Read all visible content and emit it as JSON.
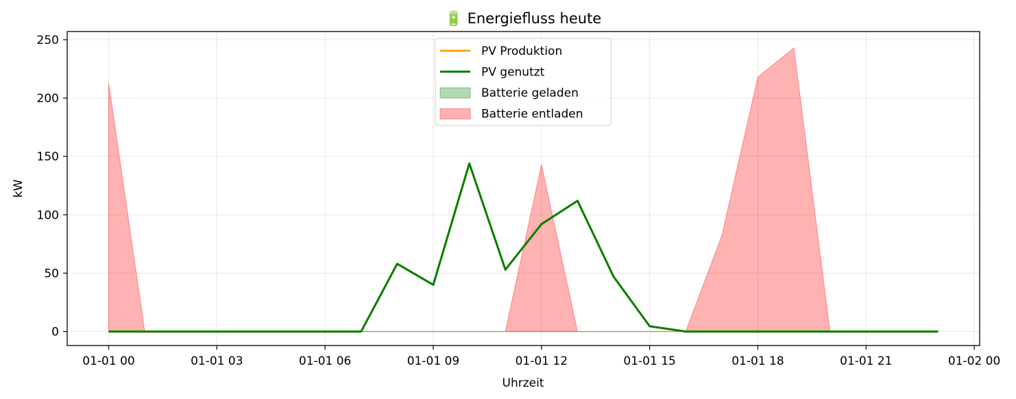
{
  "chart_data": {
    "type": "line",
    "title": "🔋 Energiefluss heute",
    "xlabel": "Uhrzeit",
    "ylabel": "kW",
    "x": [
      0,
      1,
      2,
      3,
      4,
      5,
      6,
      7,
      8,
      9,
      10,
      11,
      12,
      13,
      14,
      15,
      16,
      17,
      18,
      19,
      20,
      21,
      22,
      23
    ],
    "x_ticks": [
      {
        "value": 0,
        "label": "01-01 00"
      },
      {
        "value": 3,
        "label": "01-01 03"
      },
      {
        "value": 6,
        "label": "01-01 06"
      },
      {
        "value": 9,
        "label": "01-01 09"
      },
      {
        "value": 12,
        "label": "01-01 12"
      },
      {
        "value": 15,
        "label": "01-01 15"
      },
      {
        "value": 18,
        "label": "01-01 18"
      },
      {
        "value": 21,
        "label": "01-01 21"
      },
      {
        "value": 24,
        "label": "01-02 00"
      }
    ],
    "y_ticks": [
      0,
      50,
      100,
      150,
      200,
      250
    ],
    "xlim": [
      -1.15,
      24.15
    ],
    "ylim": [
      -12,
      257
    ],
    "grid": true,
    "legend_position": "upper center",
    "series": [
      {
        "name": "PV Produktion",
        "kind": "line",
        "color": "#ffa500",
        "values": [
          0,
          0,
          0,
          0,
          0,
          0,
          0,
          0,
          58,
          40,
          144,
          53,
          92,
          112,
          47,
          4.5,
          0,
          0,
          0,
          0,
          0,
          0,
          0,
          0
        ]
      },
      {
        "name": "PV genutzt",
        "kind": "line",
        "color": "#008000",
        "values": [
          0,
          0,
          0,
          0,
          0,
          0,
          0,
          0,
          58,
          40,
          144,
          53,
          92,
          112,
          47,
          4.5,
          0,
          0,
          0,
          0,
          0,
          0,
          0,
          0
        ]
      },
      {
        "name": "Batterie geladen",
        "kind": "area",
        "color": "#008000",
        "values": [
          0,
          0,
          0,
          0,
          0,
          0,
          0,
          0,
          0,
          0,
          0,
          0,
          0,
          0,
          0,
          0,
          0,
          0,
          0,
          0,
          0,
          0,
          0,
          0
        ]
      },
      {
        "name": "Batterie entladen",
        "kind": "area",
        "color": "#ff0000",
        "values": [
          213,
          0,
          0,
          0,
          0,
          0,
          0,
          0,
          0,
          0,
          0,
          0,
          143,
          0,
          0,
          0,
          0,
          82,
          218,
          243,
          0,
          0,
          0,
          0
        ]
      }
    ]
  }
}
